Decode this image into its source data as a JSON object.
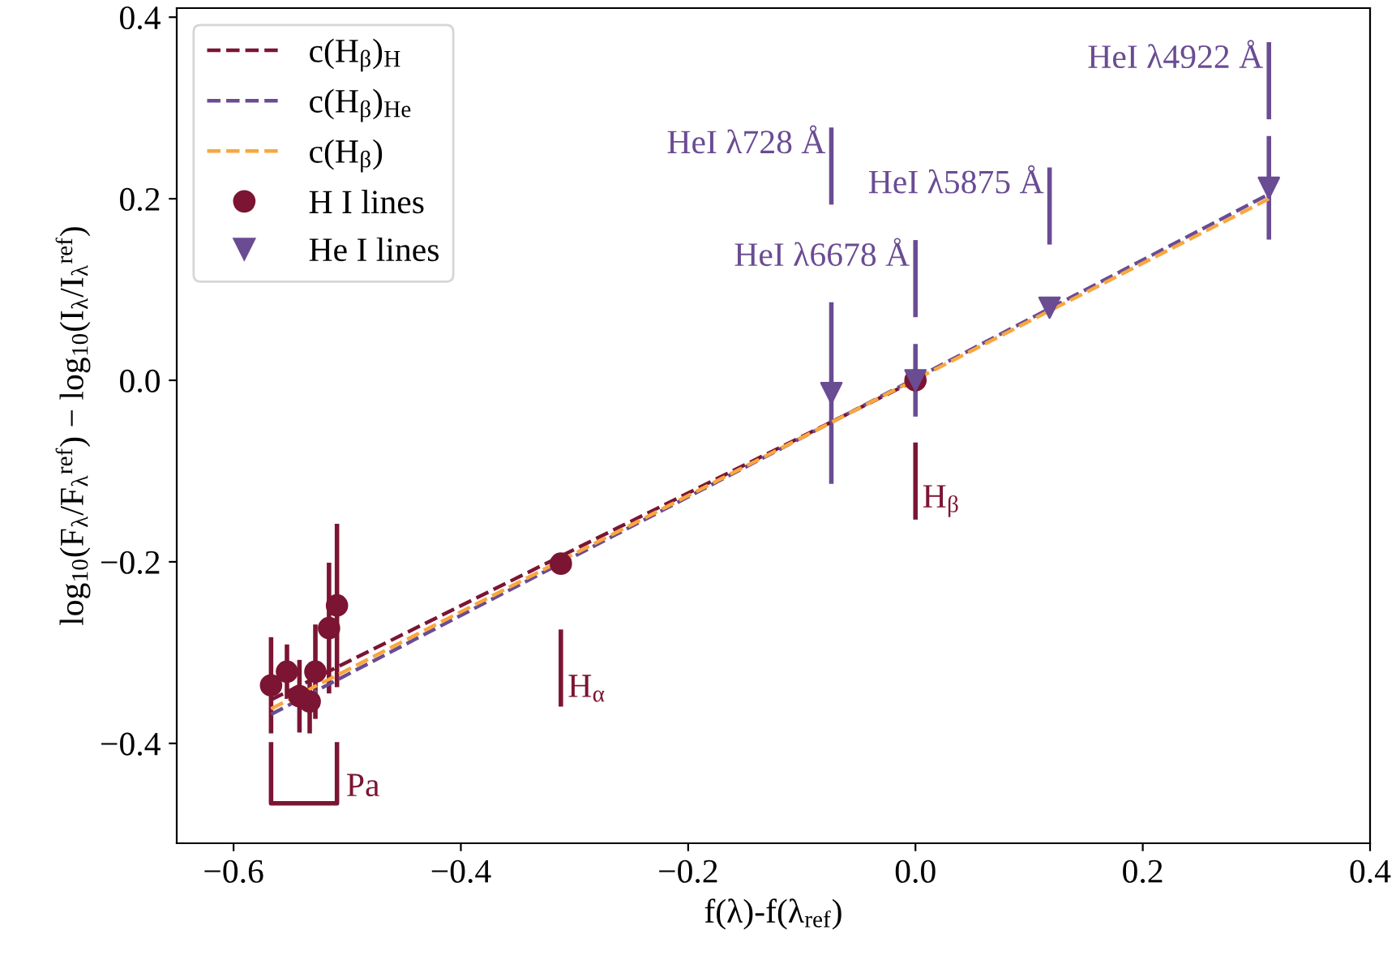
{
  "chart_data": {
    "type": "scatter",
    "xlabel": "f(λ)-f(λ$_{ref}$)",
    "ylabel": "log$_{10}$(F$_{λ}$/F$_{λ}$$^{ref}$) − log$_{10}$(I$_{λ}$/I$_{λ}$$^{ref}$)",
    "xlim": [
      -0.65,
      0.4
    ],
    "ylim": [
      -0.51,
      0.41
    ],
    "xticks": [
      {
        "value": -0.6,
        "label": "−0.6"
      },
      {
        "value": -0.4,
        "label": "−0.4"
      },
      {
        "value": -0.2,
        "label": "−0.2"
      },
      {
        "value": 0.0,
        "label": "0.0"
      },
      {
        "value": 0.2,
        "label": "0.2"
      },
      {
        "value": 0.4,
        "label": "0.4"
      }
    ],
    "yticks": [
      {
        "value": -0.4,
        "label": "−0.4"
      },
      {
        "value": -0.2,
        "label": "−0.2"
      },
      {
        "value": 0.0,
        "label": "0.0"
      },
      {
        "value": 0.2,
        "label": "0.2"
      },
      {
        "value": 0.4,
        "label": "0.4"
      }
    ],
    "grid": false,
    "legend": "top left",
    "series": [
      {
        "name": "c(H$_{β}$)$_{H}$",
        "type": "line",
        "color": "#7b1533",
        "line_style": "dashed",
        "marker": "none",
        "x": [
          -0.567,
          0.0
        ],
        "values": [
          -0.352,
          0.0
        ]
      },
      {
        "name": "c(H$_{β}$)$_{He}$",
        "type": "line",
        "color": "#6a4c93",
        "line_style": "dashed",
        "marker": "none",
        "x": [
          -0.567,
          0.311
        ],
        "values": [
          -0.368,
          0.205
        ]
      },
      {
        "name": "c(H$_{β}$)",
        "type": "line",
        "color": "#f9a73e",
        "line_style": "dashed",
        "marker": "none",
        "x": [
          -0.567,
          0.311
        ],
        "values": [
          -0.362,
          0.2
        ]
      },
      {
        "name": "H I lines",
        "color": "#7b1533",
        "marker": "circle",
        "x": [
          -0.567,
          -0.553,
          -0.542,
          -0.533,
          -0.528,
          -0.516,
          -0.509,
          -0.312,
          0.0
        ],
        "values": [
          -0.336,
          -0.321,
          -0.348,
          -0.354,
          -0.321,
          -0.273,
          -0.248,
          -0.202,
          0.0
        ],
        "errors": [
          0.053,
          0.03,
          0.04,
          0.035,
          0.052,
          0.072,
          0.09,
          0.005,
          0.005
        ]
      },
      {
        "name": "He I lines",
        "color": "#6a4c93",
        "marker": "triangle",
        "x": [
          -0.074,
          0.0,
          0.118,
          0.311
        ],
        "values": [
          -0.014,
          0.0,
          0.08,
          0.212
        ],
        "errors": [
          0.1,
          0.04,
          0.005,
          0.057
        ]
      }
    ],
    "annotations": [
      "HeI λ4922 Å",
      "HeI λ728 Å",
      "HeI λ5875 Å",
      "HeI λ6678 Å",
      "H$_{β}$",
      "H$_{α}$",
      "Pa"
    ]
  }
}
